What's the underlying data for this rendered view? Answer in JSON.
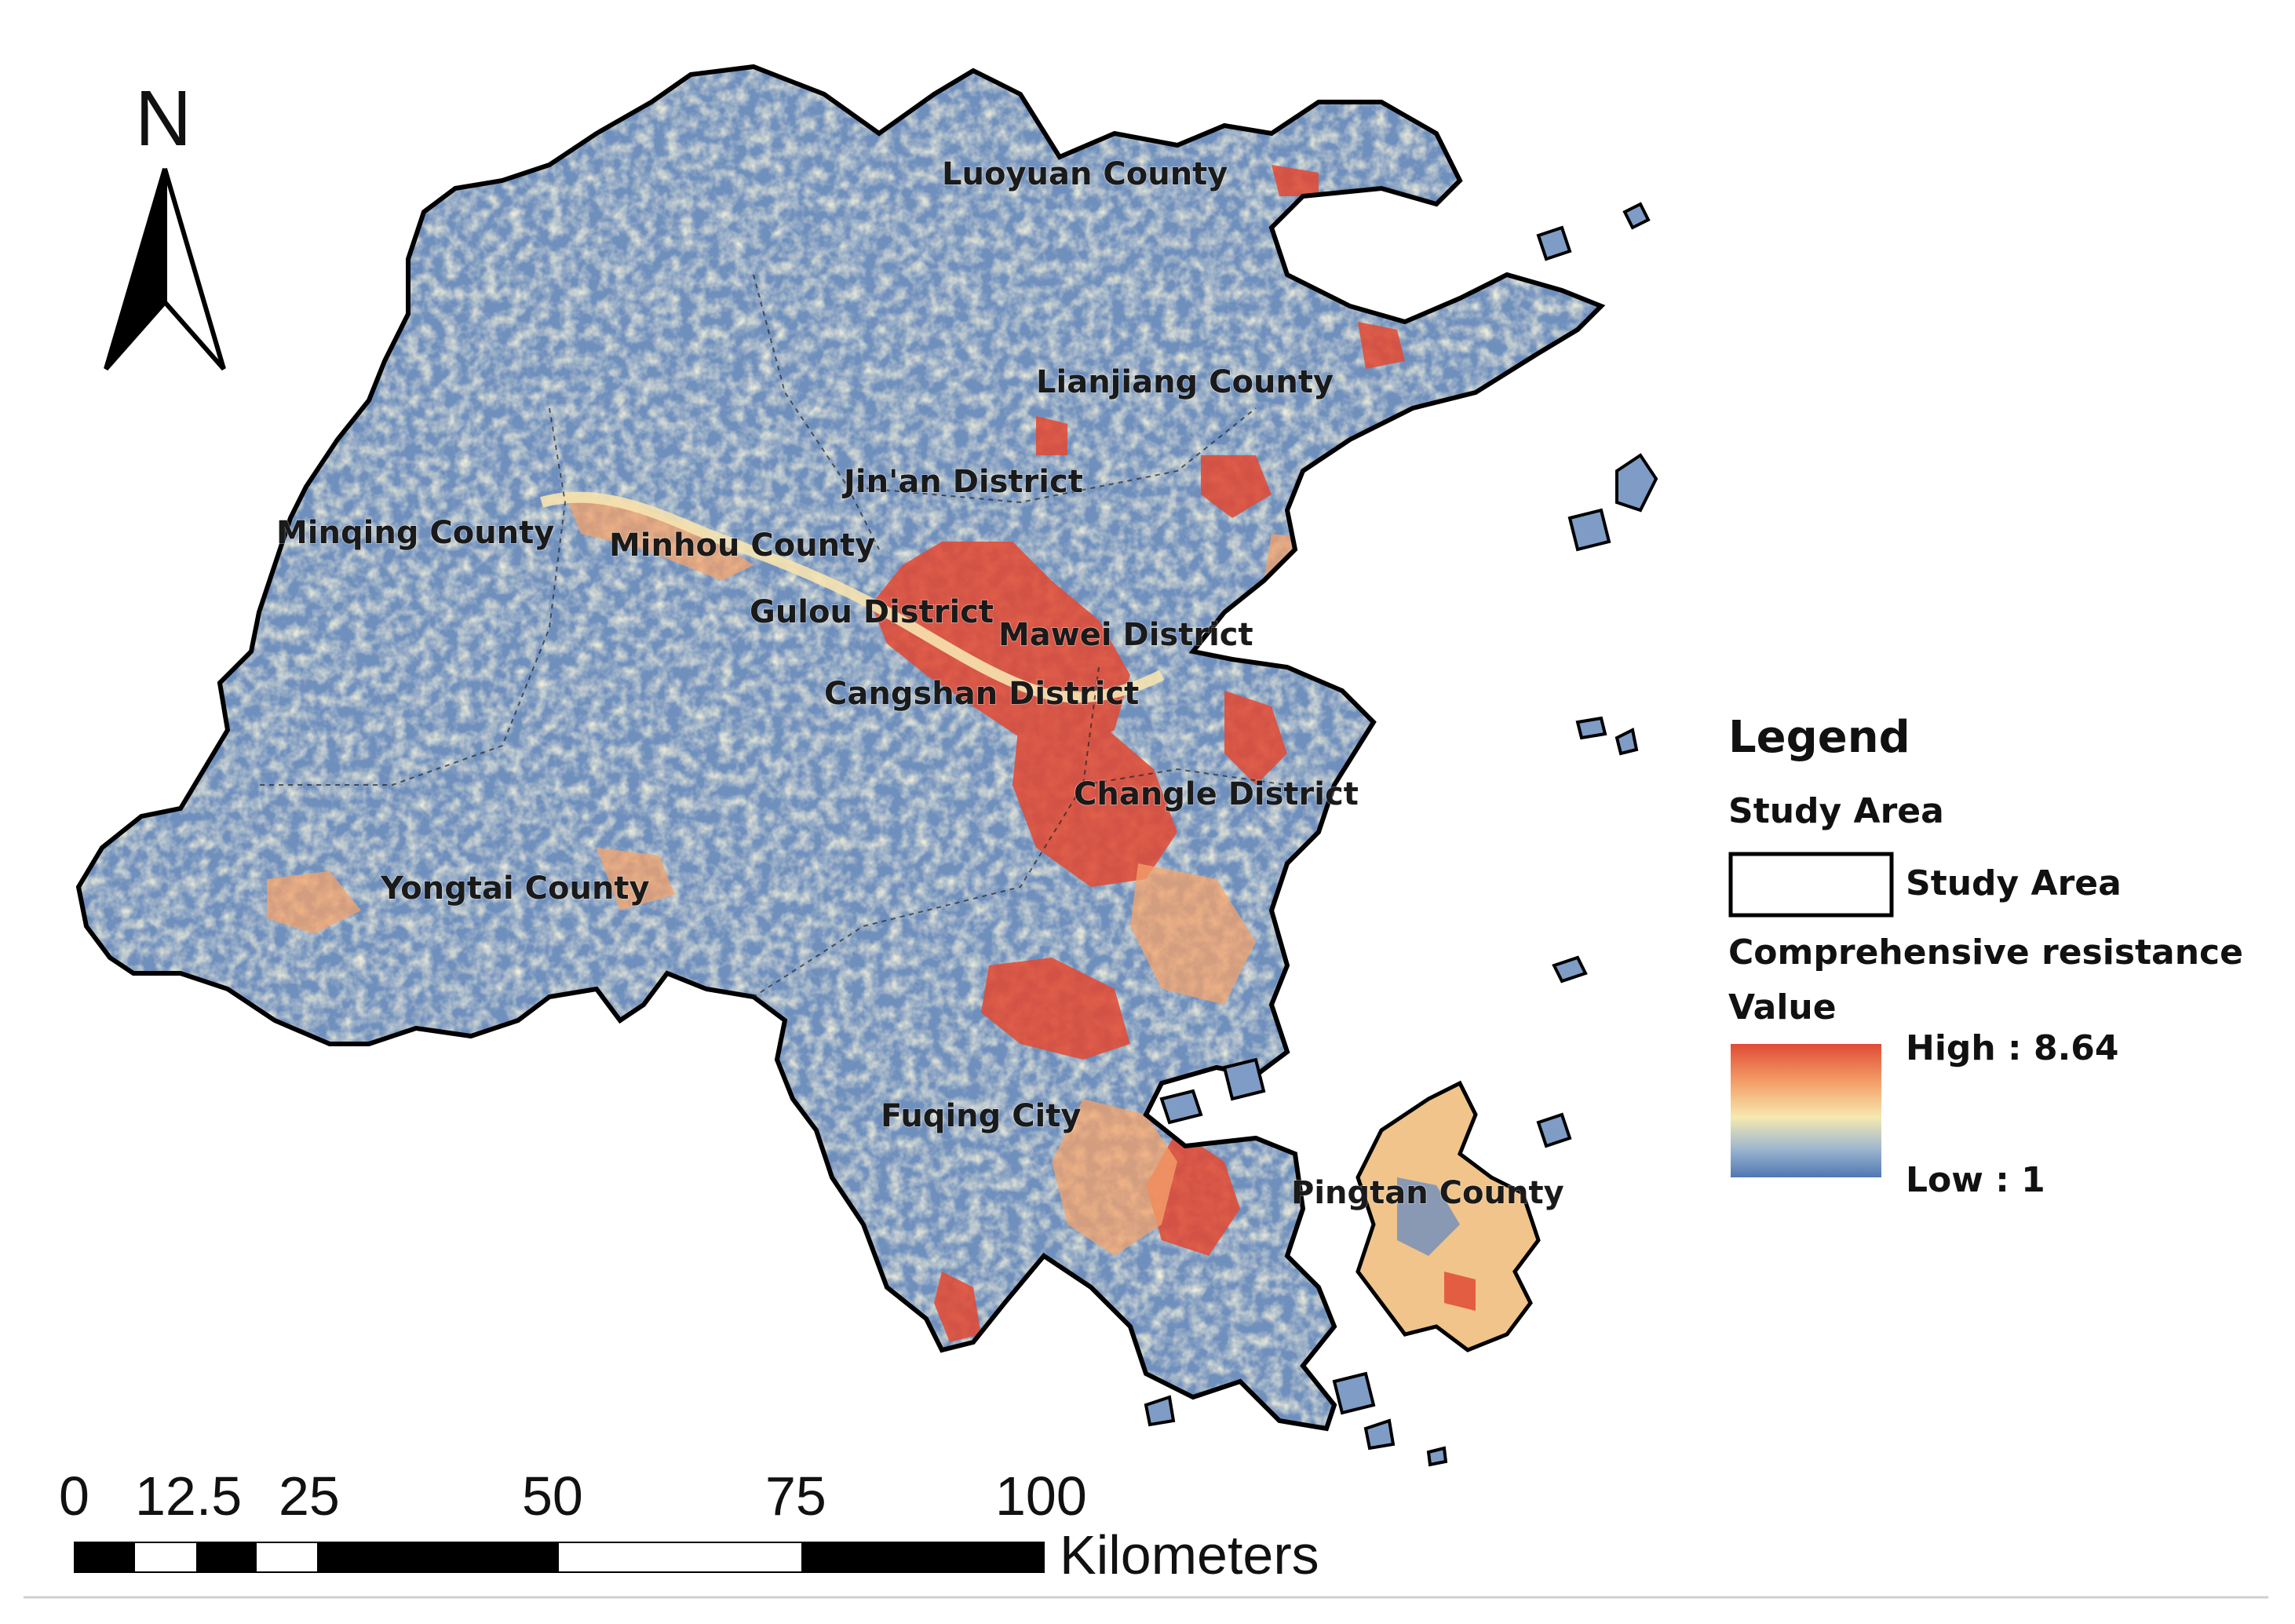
{
  "north_arrow": {
    "label": "N"
  },
  "districts": [
    {
      "id": "luoyuan",
      "name": "Luoyuan County"
    },
    {
      "id": "lianjiang",
      "name": "Lianjiang County"
    },
    {
      "id": "jinan",
      "name": "Jin'an District"
    },
    {
      "id": "minqing",
      "name": "Minqing County"
    },
    {
      "id": "minhou",
      "name": "Minhou County"
    },
    {
      "id": "gulou",
      "name": "Gulou District"
    },
    {
      "id": "mawei",
      "name": "Mawei District"
    },
    {
      "id": "cangshan",
      "name": "Cangshan District"
    },
    {
      "id": "changle",
      "name": "Changle District"
    },
    {
      "id": "yongtai",
      "name": "Yongtai County"
    },
    {
      "id": "fuqing",
      "name": "Fuqing City"
    },
    {
      "id": "pingtan",
      "name": "Pingtan County"
    }
  ],
  "legend": {
    "title": "Legend",
    "study_area_heading": "Study Area",
    "study_area_label": "Study Area",
    "resistance_heading_line1": "Comprehensive resistance",
    "resistance_heading_line2": "Value",
    "high_label": "High : 8.64",
    "low_label": "Low : 1",
    "ramp_colors": [
      "#e04b36",
      "#f4a36b",
      "#f6e9b0",
      "#9fb8cf",
      "#4f77b3"
    ]
  },
  "scale_bar": {
    "ticks": [
      "0",
      "12.5",
      "25",
      "50",
      "75",
      "100"
    ],
    "unit": "Kilometers"
  },
  "colors": {
    "low": "#4f77b3",
    "mid": "#f2e6b3",
    "high": "#e04b36",
    "outline": "#000000"
  }
}
